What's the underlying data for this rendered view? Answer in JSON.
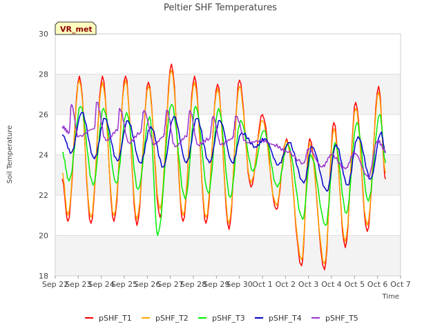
{
  "chart_data": {
    "type": "line",
    "title": "Peltier SHF Temperatures",
    "xlabel": "Time",
    "ylabel": "Soil Temperature",
    "badge": "VR_met",
    "ylim": [
      18,
      30
    ],
    "yticks": [
      18,
      20,
      22,
      24,
      26,
      28,
      30
    ],
    "xlim": [
      0,
      15
    ],
    "xticks": [
      {
        "pos": 0,
        "label": "Sep 22"
      },
      {
        "pos": 1,
        "label": "Sep 23"
      },
      {
        "pos": 2,
        "label": "Sep 24"
      },
      {
        "pos": 3,
        "label": "Sep 25"
      },
      {
        "pos": 4,
        "label": "Sep 26"
      },
      {
        "pos": 5,
        "label": "Sep 27"
      },
      {
        "pos": 6,
        "label": "Sep 28"
      },
      {
        "pos": 7,
        "label": "Sep 29"
      },
      {
        "pos": 8,
        "label": "Sep 30"
      },
      {
        "pos": 9,
        "label": "Oct 1"
      },
      {
        "pos": 10,
        "label": "Oct 2"
      },
      {
        "pos": 11,
        "label": "Oct 3"
      },
      {
        "pos": 12,
        "label": "Oct 4"
      },
      {
        "pos": 13,
        "label": "Oct 5"
      },
      {
        "pos": 14,
        "label": "Oct 6"
      },
      {
        "pos": 15,
        "label": "Oct 7"
      }
    ],
    "grid": true,
    "legend_position": "bottom",
    "series": [
      {
        "name": "pSHF_T1",
        "color": "#ff0000",
        "x": [
          0.3,
          0.55,
          1.05,
          1.55,
          2.05,
          2.55,
          3.05,
          3.55,
          4.05,
          4.55,
          5.05,
          5.55,
          6.05,
          6.55,
          7.05,
          7.55,
          8.0,
          8.5,
          9.0,
          9.6,
          10.05,
          10.7,
          11.05,
          11.7,
          12.1,
          12.6,
          13.05,
          13.55,
          14.05,
          14.35
        ],
        "y": [
          22.8,
          20.7,
          27.9,
          20.6,
          27.9,
          20.7,
          27.9,
          20.5,
          27.6,
          20.9,
          28.5,
          20.7,
          27.9,
          20.6,
          27.5,
          20.3,
          27.7,
          22.4,
          26.0,
          21.3,
          24.8,
          18.5,
          24.8,
          18.3,
          25.6,
          19.4,
          26.6,
          20.2,
          27.4,
          22.8
        ]
      },
      {
        "name": "pSHF_T2",
        "color": "#ffa500",
        "x": [
          0.3,
          0.55,
          1.05,
          1.55,
          2.05,
          2.55,
          3.05,
          3.55,
          4.05,
          4.55,
          5.05,
          5.55,
          6.05,
          6.55,
          7.05,
          7.55,
          8.0,
          8.5,
          9.0,
          9.6,
          10.05,
          10.7,
          11.05,
          11.7,
          12.1,
          12.6,
          13.05,
          13.55,
          14.05,
          14.35
        ],
        "y": [
          23.1,
          21.0,
          27.7,
          20.9,
          27.6,
          21.0,
          27.7,
          20.8,
          27.4,
          21.3,
          28.2,
          21.0,
          27.6,
          20.9,
          27.3,
          20.6,
          27.4,
          22.6,
          25.7,
          21.5,
          24.7,
          18.8,
          24.6,
          18.6,
          25.3,
          19.7,
          26.3,
          20.5,
          27.1,
          23.1
        ]
      },
      {
        "name": "pSHF_T3",
        "color": "#00ee00",
        "x": [
          0.3,
          0.6,
          1.1,
          1.65,
          2.1,
          2.65,
          3.1,
          3.6,
          4.1,
          4.45,
          5.05,
          5.65,
          6.1,
          6.65,
          7.1,
          7.6,
          8.05,
          8.6,
          9.05,
          9.65,
          10.1,
          10.75,
          11.1,
          11.75,
          12.15,
          12.65,
          13.1,
          13.6,
          14.1,
          14.35
        ],
        "y": [
          24.1,
          22.7,
          26.4,
          22.5,
          26.3,
          22.6,
          26.1,
          22.3,
          25.9,
          20.0,
          26.5,
          21.8,
          26.4,
          22.1,
          26.3,
          21.9,
          25.7,
          23.2,
          25.2,
          22.4,
          24.5,
          20.8,
          24.0,
          20.5,
          24.6,
          21.1,
          25.6,
          21.7,
          26.0,
          23.6
        ]
      },
      {
        "name": "pSHF_T4",
        "color": "#0000cc",
        "x": [
          0.3,
          0.7,
          1.15,
          1.7,
          2.15,
          2.7,
          3.15,
          3.7,
          4.15,
          4.7,
          5.15,
          5.7,
          6.15,
          6.7,
          7.15,
          7.7,
          8.1,
          8.7,
          9.1,
          9.7,
          10.15,
          10.8,
          11.15,
          11.8,
          12.2,
          12.7,
          13.15,
          13.7,
          14.15,
          14.35
        ],
        "y": [
          25.0,
          24.1,
          26.1,
          23.8,
          25.8,
          23.7,
          25.7,
          23.6,
          25.4,
          23.4,
          25.9,
          23.6,
          25.8,
          23.6,
          25.7,
          23.6,
          25.1,
          24.4,
          24.8,
          23.5,
          24.6,
          22.6,
          24.4,
          22.2,
          24.5,
          22.5,
          24.9,
          22.8,
          25.1,
          24.1
        ]
      },
      {
        "name": "pSHF_T5",
        "color": "#9932cc",
        "x": [
          0.3,
          0.6,
          0.7,
          1.0,
          1.7,
          1.8,
          2.2,
          2.7,
          2.8,
          3.2,
          3.7,
          3.85,
          4.3,
          4.7,
          4.85,
          5.2,
          5.7,
          5.85,
          6.2,
          6.7,
          6.85,
          7.2,
          7.7,
          7.85,
          8.3,
          9.0,
          9.5,
          10.0,
          10.8,
          11.0,
          11.6,
          12.0,
          12.6,
          13.0,
          13.6,
          14.0,
          14.35
        ],
        "y": [
          25.4,
          25.1,
          26.5,
          24.9,
          25.3,
          26.6,
          24.7,
          25.2,
          26.3,
          24.6,
          25.1,
          26.2,
          24.5,
          24.9,
          26.2,
          24.4,
          24.9,
          26.2,
          24.5,
          24.8,
          25.9,
          24.5,
          24.8,
          25.9,
          24.6,
          24.7,
          24.5,
          24.2,
          23.6,
          24.3,
          23.4,
          24.0,
          23.3,
          24.1,
          22.9,
          24.7,
          24.2
        ]
      }
    ]
  }
}
